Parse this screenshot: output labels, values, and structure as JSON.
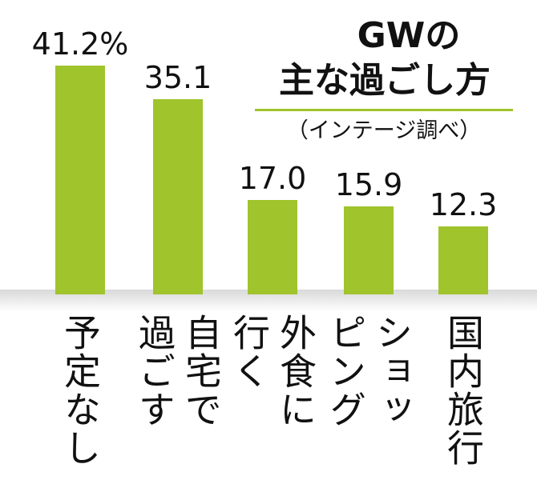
{
  "chart_data": {
    "type": "bar",
    "title": [
      "GWの",
      "主な過ごし方"
    ],
    "subtitle": "（インテージ調べ）",
    "categories": [
      [
        "予定なし"
      ],
      [
        "自宅で",
        "過ごす"
      ],
      [
        "外食に",
        "行く"
      ],
      [
        "ショッ",
        "ピング"
      ],
      [
        "国内旅行"
      ]
    ],
    "values": [
      41.2,
      35.1,
      17.0,
      15.9,
      12.3
    ],
    "value_labels": [
      "41.2%",
      "35.1",
      "17.0",
      "15.9",
      "12.3"
    ],
    "color": "#9fc42c"
  }
}
